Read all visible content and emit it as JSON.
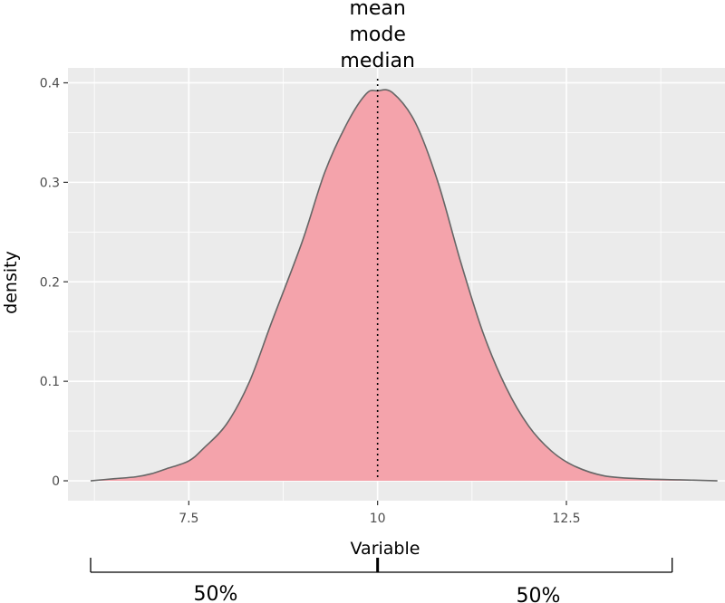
{
  "chart_data": {
    "type": "area",
    "xlabel": "Variable",
    "ylabel": "density",
    "xlim": [
      5.9,
      14.6
    ],
    "ylim": [
      -0.02,
      0.415
    ],
    "x_ticks": [
      7.5,
      10,
      12.5
    ],
    "x_tick_labels": [
      "7.5",
      "10",
      "12.5"
    ],
    "y_ticks": [
      0,
      0.1,
      0.2,
      0.3,
      0.4
    ],
    "y_tick_labels": [
      "0",
      "0.1",
      "0.2",
      "0.3",
      "0.4"
    ],
    "grid": true,
    "series": [
      {
        "x": [
          6.2,
          6.5,
          6.8,
          7.0,
          7.2,
          7.5,
          7.7,
          8.0,
          8.3,
          8.6,
          9.0,
          9.3,
          9.6,
          9.85,
          10.0,
          10.2,
          10.5,
          10.8,
          11.1,
          11.4,
          11.7,
          12.0,
          12.3,
          12.6,
          13.0,
          13.5,
          14.0,
          14.5
        ],
        "y": [
          0.0,
          0.002,
          0.004,
          0.007,
          0.012,
          0.02,
          0.033,
          0.057,
          0.099,
          0.16,
          0.24,
          0.31,
          0.36,
          0.389,
          0.392,
          0.39,
          0.36,
          0.3,
          0.22,
          0.148,
          0.094,
          0.055,
          0.03,
          0.015,
          0.005,
          0.002,
          0.001,
          0.0
        ],
        "fill_color": "#f4a3ab",
        "line_color": "#666666"
      }
    ],
    "vline": {
      "x": 10,
      "style": "dotted",
      "color": "#000000"
    },
    "annotation_lines": [
      "mean",
      "mode",
      "median"
    ],
    "below_axis": {
      "left_label": "50%",
      "right_label": "50%",
      "x_start": 6.2,
      "x_mid": 10,
      "x_end": 13.9
    },
    "colors": {
      "panel": "#ebebeb",
      "grid": "#ffffff"
    }
  }
}
